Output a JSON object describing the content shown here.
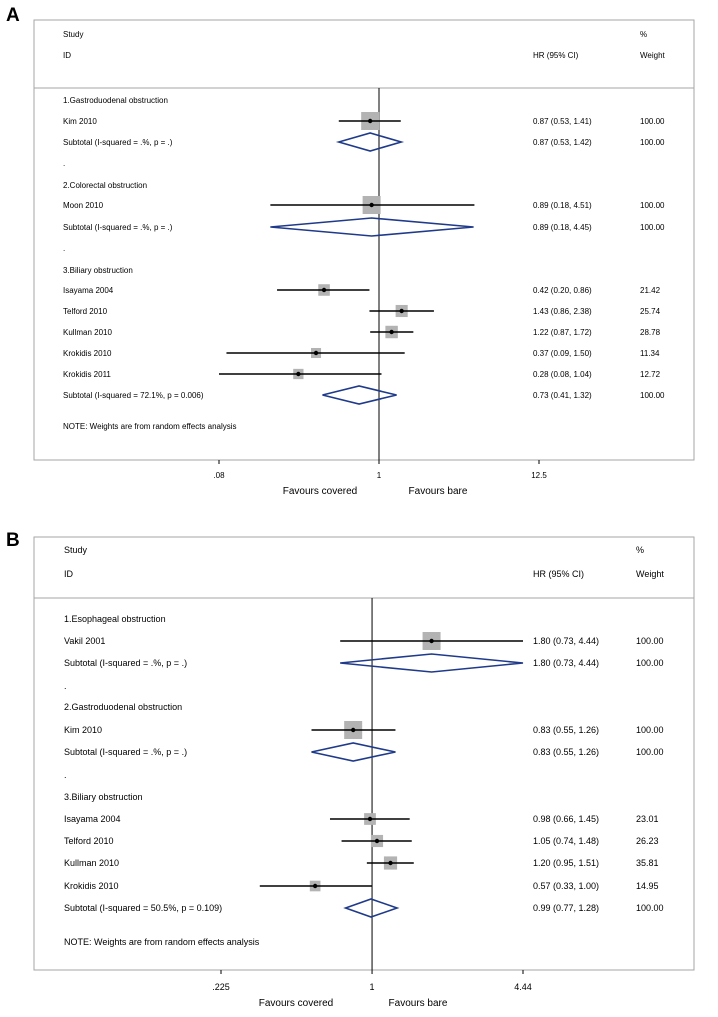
{
  "chart_data": [
    {
      "type": "forest",
      "panel_label": "A",
      "header": {
        "study": "Study",
        "id": "ID",
        "hr_ci": "HR (95% CI)",
        "pct": "%",
        "weight": "Weight"
      },
      "x_ticks": [
        {
          "value": 0.08,
          "label": ".08"
        },
        {
          "value": 1,
          "label": "1"
        },
        {
          "value": 12.5,
          "label": "12.5"
        }
      ],
      "x_range": [
        0.0047,
        70
      ],
      "favours_left": "Favours covered",
      "favours_right": "Favours bare",
      "note": "NOTE: Weights are from random effects analysis",
      "groups": [
        {
          "title": "1.Gastroduodenal obstruction",
          "studies": [
            {
              "name": "Kim 2010",
              "hr": 0.87,
              "lo": 0.53,
              "hi": 1.41,
              "ci_text": "0.87 (0.53, 1.41)",
              "weight": "100.00",
              "w": 100
            }
          ],
          "subtotal": {
            "label": "Subtotal  (I-squared = .%, p = .)",
            "hr": 0.87,
            "lo": 0.53,
            "hi": 1.42,
            "ci_text": "0.87 (0.53, 1.42)",
            "weight": "100.00"
          }
        },
        {
          "title": "2.Colorectal obstruction",
          "studies": [
            {
              "name": "Moon 2010",
              "hr": 0.89,
              "lo": 0.18,
              "hi": 4.51,
              "ci_text": "0.89 (0.18, 4.51)",
              "weight": "100.00",
              "w": 100
            }
          ],
          "subtotal": {
            "label": "Subtotal  (I-squared = .%, p = .)",
            "hr": 0.89,
            "lo": 0.18,
            "hi": 4.45,
            "ci_text": "0.89 (0.18, 4.45)",
            "weight": "100.00"
          }
        },
        {
          "title": "3.Biliary obstruction",
          "studies": [
            {
              "name": "Isayama 2004",
              "hr": 0.42,
              "lo": 0.2,
              "hi": 0.86,
              "ci_text": "0.42 (0.20, 0.86)",
              "weight": "21.42",
              "w": 21.42
            },
            {
              "name": "Telford 2010",
              "hr": 1.43,
              "lo": 0.86,
              "hi": 2.38,
              "ci_text": "1.43 (0.86, 2.38)",
              "weight": "25.74",
              "w": 25.74
            },
            {
              "name": "Kullman 2010",
              "hr": 1.22,
              "lo": 0.87,
              "hi": 1.72,
              "ci_text": "1.22 (0.87, 1.72)",
              "weight": "28.78",
              "w": 28.78
            },
            {
              "name": "Krokidis 2010",
              "hr": 0.37,
              "lo": 0.09,
              "hi": 1.5,
              "ci_text": "0.37 (0.09, 1.50)",
              "weight": "11.34",
              "w": 11.34
            },
            {
              "name": "Krokidis 2011",
              "hr": 0.28,
              "lo": 0.08,
              "hi": 1.04,
              "ci_text": "0.28 (0.08, 1.04)",
              "weight": "12.72",
              "w": 12.72
            }
          ],
          "subtotal": {
            "label": "Subtotal  (I-squared = 72.1%, p = 0.006)",
            "hr": 0.73,
            "lo": 0.41,
            "hi": 1.32,
            "ci_text": "0.73 (0.41, 1.32)",
            "weight": "100.00"
          }
        }
      ]
    },
    {
      "type": "forest",
      "panel_label": "B",
      "header": {
        "study": "Study",
        "id": "ID",
        "hr_ci": "HR (95% CI)",
        "pct": "%",
        "weight": "Weight"
      },
      "x_ticks": [
        {
          "value": 0.225,
          "label": ".225"
        },
        {
          "value": 1,
          "label": "1"
        },
        {
          "value": 4.44,
          "label": "4.44"
        }
      ],
      "x_range": [
        0.04,
        8.9
      ],
      "favours_left": "Favours covered",
      "favours_right": "Favours bare",
      "note": "NOTE: Weights are from random effects analysis",
      "groups": [
        {
          "title": "1.Esophageal obstruction",
          "studies": [
            {
              "name": "Vakil 2001",
              "hr": 1.8,
              "lo": 0.73,
              "hi": 4.44,
              "ci_text": "1.80 (0.73, 4.44)",
              "weight": "100.00",
              "w": 100
            }
          ],
          "subtotal": {
            "label": "Subtotal  (I-squared = .%, p = .)",
            "hr": 1.8,
            "lo": 0.73,
            "hi": 4.44,
            "ci_text": "1.80 (0.73, 4.44)",
            "weight": "100.00"
          }
        },
        {
          "title": "2.Gastroduodenal obstruction",
          "studies": [
            {
              "name": "Kim 2010",
              "hr": 0.83,
              "lo": 0.55,
              "hi": 1.26,
              "ci_text": "0.83 (0.55, 1.26)",
              "weight": "100.00",
              "w": 100
            }
          ],
          "subtotal": {
            "label": "Subtotal  (I-squared = .%, p = .)",
            "hr": 0.83,
            "lo": 0.55,
            "hi": 1.26,
            "ci_text": "0.83 (0.55, 1.26)",
            "weight": "100.00"
          }
        },
        {
          "title": "3.Biliary obstruction",
          "studies": [
            {
              "name": "Isayama 2004",
              "hr": 0.98,
              "lo": 0.66,
              "hi": 1.45,
              "ci_text": "0.98 (0.66, 1.45)",
              "weight": "23.01",
              "w": 23.01
            },
            {
              "name": "Telford 2010",
              "hr": 1.05,
              "lo": 0.74,
              "hi": 1.48,
              "ci_text": "1.05 (0.74, 1.48)",
              "weight": "26.23",
              "w": 26.23
            },
            {
              "name": "Kullman 2010",
              "hr": 1.2,
              "lo": 0.95,
              "hi": 1.51,
              "ci_text": "1.20 (0.95, 1.51)",
              "weight": "35.81",
              "w": 35.81
            },
            {
              "name": "Krokidis 2010",
              "hr": 0.57,
              "lo": 0.33,
              "hi": 1.0,
              "ci_text": "0.57 (0.33, 1.00)",
              "weight": "14.95",
              "w": 14.95
            }
          ],
          "subtotal": {
            "label": "Subtotal  (I-squared = 50.5%, p = 0.109)",
            "hr": 0.99,
            "lo": 0.77,
            "hi": 1.28,
            "ci_text": "0.99 (0.77, 1.28)",
            "weight": "100.00"
          }
        }
      ]
    }
  ]
}
